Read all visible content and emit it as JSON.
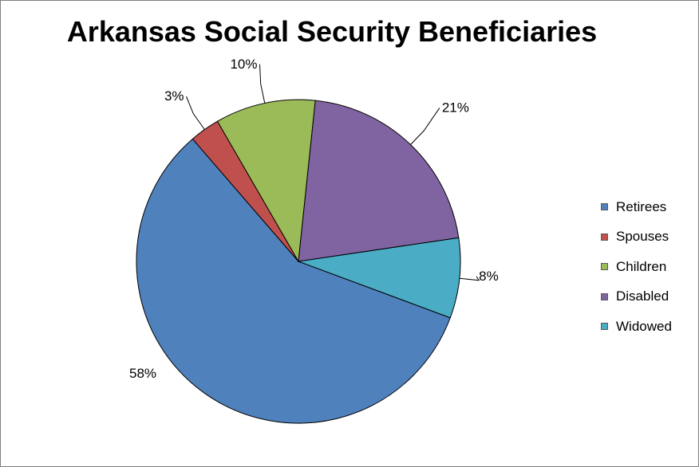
{
  "chart_data": {
    "type": "pie",
    "title": "Arkansas Social Security Beneficiaries",
    "categories": [
      "Retirees",
      "Spouses",
      "Children",
      "Disabled",
      "Widowed"
    ],
    "values": [
      58,
      3,
      10,
      21,
      8
    ],
    "labels": [
      "58%",
      "3%",
      "10%",
      "21%",
      "8%"
    ],
    "colors": [
      "#4f81bd",
      "#c0504d",
      "#9bbb59",
      "#8064a2",
      "#4bacc6"
    ],
    "legend_position": "right"
  }
}
